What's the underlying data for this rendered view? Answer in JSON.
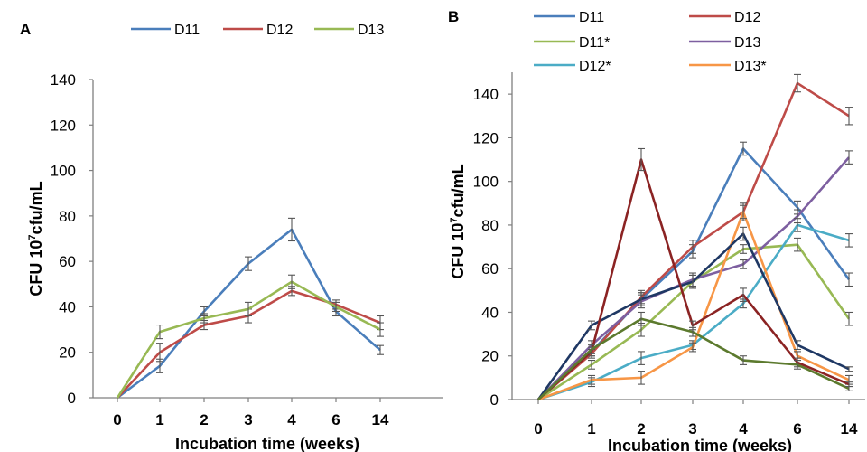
{
  "chart_data": [
    {
      "type": "line",
      "panel": "A",
      "xlabel": "Incubation time (weeks)",
      "ylabel_main": "CFU 10",
      "ylabel_sup": "7",
      "ylabel_rest": "cfu/mL",
      "categories": [
        "0",
        "1",
        "2",
        "3",
        "4",
        "6",
        "14"
      ],
      "ylim": [
        0,
        140
      ],
      "yticks": [
        0,
        20,
        40,
        60,
        80,
        100,
        120,
        140
      ],
      "legend_position": "top",
      "series": [
        {
          "name": "D11",
          "color": "#4a7ebb",
          "values": [
            0,
            14,
            38,
            59,
            74,
            38,
            21
          ],
          "errors": [
            0,
            3,
            2,
            3,
            5,
            2,
            2
          ]
        },
        {
          "name": "D12",
          "color": "#be4b48",
          "values": [
            0,
            20,
            32,
            36,
            47,
            41,
            33
          ],
          "errors": [
            0,
            4,
            2,
            3,
            2,
            2,
            3
          ]
        },
        {
          "name": "D13",
          "color": "#98b954",
          "values": [
            0,
            29,
            35,
            39,
            51,
            40,
            30
          ],
          "errors": [
            0,
            3,
            2,
            3,
            3,
            2,
            3
          ]
        }
      ]
    },
    {
      "type": "line",
      "panel": "B",
      "xlabel": "Incubation time (weeks)",
      "ylabel_main": "CFU 10",
      "ylabel_sup": "7",
      "ylabel_rest": "cfu/mL",
      "categories": [
        "0",
        "1",
        "2",
        "3",
        "4",
        "6",
        "14"
      ],
      "ylim": [
        0,
        150
      ],
      "yticks": [
        0,
        20,
        40,
        60,
        80,
        100,
        120,
        140
      ],
      "legend_position": "top",
      "series": [
        {
          "name": "D11",
          "color": "#4a7ebb",
          "values": [
            0,
            22,
            46,
            68,
            115,
            88,
            55
          ],
          "errors": [
            0,
            2,
            3,
            3,
            3,
            3,
            3
          ]
        },
        {
          "name": "D12",
          "color": "#be4b48",
          "values": [
            0,
            21,
            47,
            70,
            86,
            145,
            130
          ],
          "errors": [
            0,
            2,
            3,
            3,
            4,
            4,
            4
          ]
        },
        {
          "name": "D11*",
          "color": "#98b954",
          "values": [
            0,
            16,
            32,
            54,
            69,
            71,
            37
          ],
          "errors": [
            0,
            2,
            3,
            3,
            2,
            3,
            3
          ]
        },
        {
          "name": "D13",
          "color": "#7d5fa0",
          "values": [
            0,
            25,
            45,
            55,
            62,
            84,
            111
          ],
          "errors": [
            0,
            2,
            3,
            3,
            2,
            3,
            3
          ]
        },
        {
          "name": "D12*",
          "color": "#4bacc6",
          "values": [
            0,
            8,
            19,
            25,
            44,
            80,
            73
          ],
          "errors": [
            0,
            2,
            3,
            2,
            2,
            3,
            3
          ]
        },
        {
          "name": "D13*",
          "color": "#f79646",
          "values": [
            0,
            9,
            10,
            24,
            86,
            20,
            9
          ],
          "errors": [
            0,
            2,
            3,
            2,
            3,
            2,
            2
          ]
        },
        {
          "name": "",
          "color": "#1f3864",
          "values": [
            0,
            34,
            46,
            54,
            76,
            25,
            14
          ],
          "errors": [
            0,
            2,
            3,
            3,
            3,
            2,
            1
          ]
        },
        {
          "name": "",
          "color": "#8b2323",
          "values": [
            0,
            22,
            110,
            34,
            48,
            17,
            7
          ],
          "errors": [
            0,
            2,
            5,
            2,
            3,
            2,
            1
          ]
        },
        {
          "name": "",
          "color": "#5c7a2e",
          "values": [
            0,
            23,
            37,
            31,
            18,
            16,
            5
          ],
          "errors": [
            0,
            2,
            3,
            2,
            2,
            2,
            1
          ]
        }
      ]
    }
  ]
}
